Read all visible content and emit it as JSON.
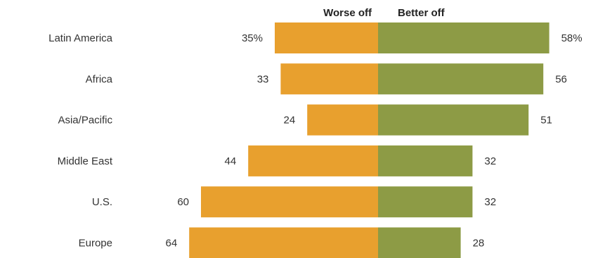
{
  "chart_data": {
    "type": "bar",
    "orientation": "horizontal-diverging",
    "categories": [
      "Latin America",
      "Africa",
      "Asia/Pacific",
      "Middle East",
      "U.S.",
      "Europe"
    ],
    "series": [
      {
        "name": "Worse off",
        "values": [
          35,
          33,
          24,
          44,
          60,
          64
        ],
        "labels": [
          "35%",
          "33",
          "24",
          "44",
          "60",
          "64"
        ],
        "color": "#E8A02E"
      },
      {
        "name": "Better off",
        "values": [
          58,
          56,
          51,
          32,
          32,
          28
        ],
        "labels": [
          "58%",
          "56",
          "51",
          "32",
          "32",
          "28"
        ],
        "color": "#8D9B45"
      }
    ],
    "legend_position": "top",
    "grid": false
  }
}
